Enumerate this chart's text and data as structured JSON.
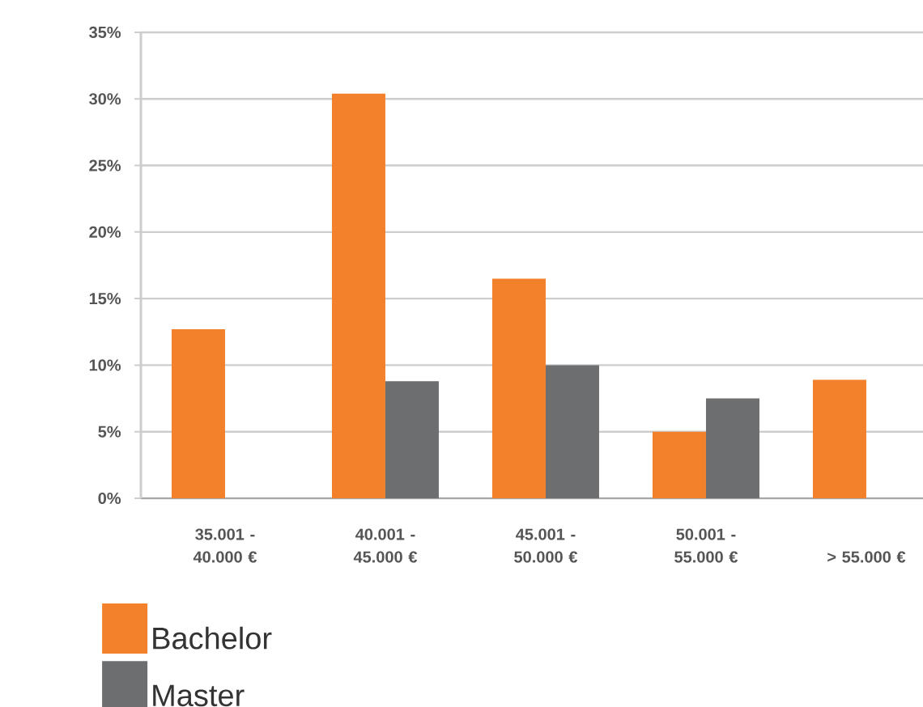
{
  "chart_data": {
    "type": "bar",
    "categories": [
      "35.001 - 40.000 €",
      "40.001 - 45.000 €",
      "45.001 - 50.000 €",
      "50.001 - 55.000 €",
      "> 55.000 €"
    ],
    "series": [
      {
        "name": "Bachelor",
        "color": "#f3812b",
        "values": [
          12.7,
          30.4,
          16.5,
          5.0,
          8.9
        ]
      },
      {
        "name": "Master",
        "color": "#6d6e70",
        "values": [
          null,
          8.8,
          10.0,
          7.5,
          null
        ]
      }
    ],
    "ylim": [
      0,
      35
    ],
    "yticks": [
      {
        "value": 0,
        "label": "0%"
      },
      {
        "value": 5,
        "label": "5%"
      },
      {
        "value": 10,
        "label": "10%"
      },
      {
        "value": 15,
        "label": "15%"
      },
      {
        "value": 20,
        "label": "20%"
      },
      {
        "value": 25,
        "label": "25%"
      },
      {
        "value": 30,
        "label": "30%"
      },
      {
        "value": 35,
        "label": "35%"
      }
    ],
    "grid": "y",
    "legend": "bottom left"
  }
}
